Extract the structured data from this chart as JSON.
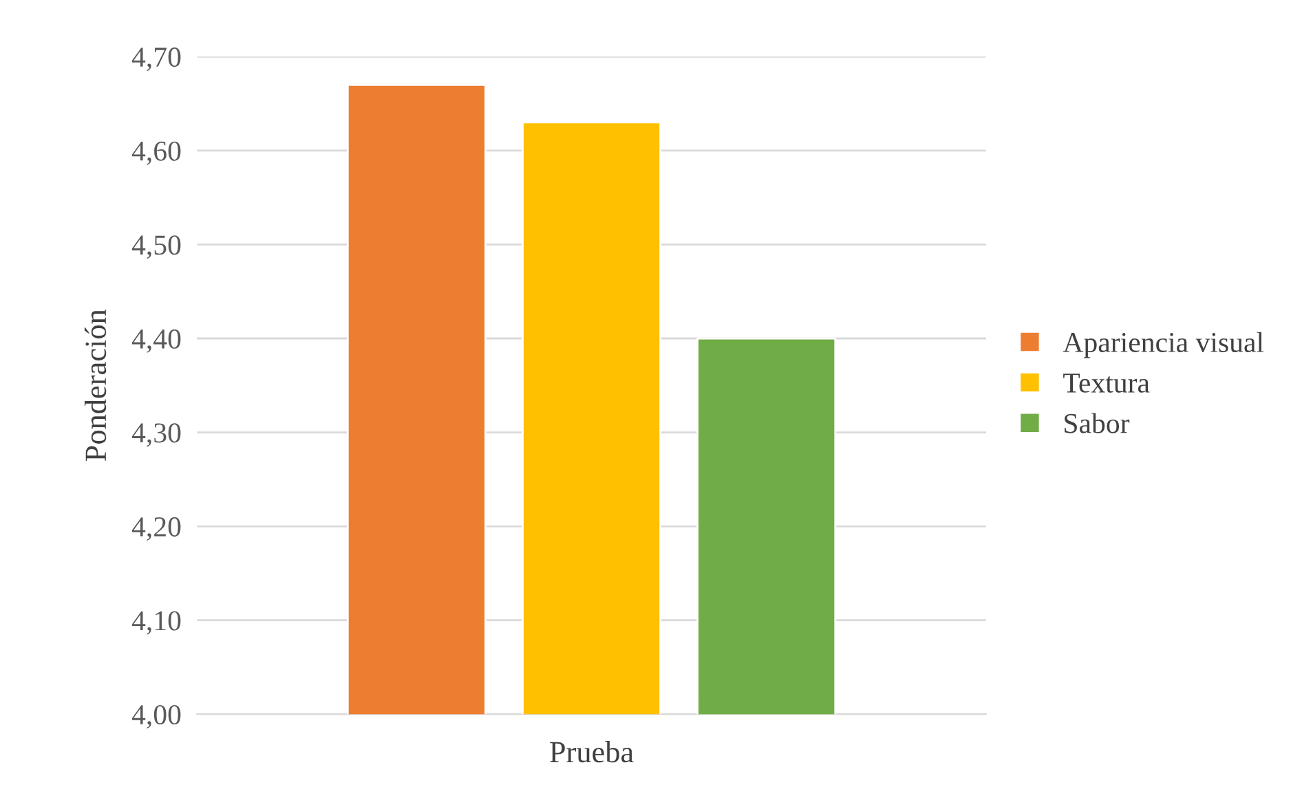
{
  "chart_data": {
    "type": "bar",
    "xlabel": "Prueba",
    "ylabel": "Ponderación",
    "categories": [
      null
    ],
    "series": [
      {
        "name": "Apariencia visual",
        "color": "#ed7d31",
        "values": [
          4.67
        ]
      },
      {
        "name": "Textura",
        "color": "#ffc000",
        "values": [
          4.63
        ]
      },
      {
        "name": "Sabor",
        "color": "#70ad47",
        "values": [
          4.4
        ]
      }
    ],
    "ylim": [
      4.0,
      4.7
    ],
    "yticks": [
      {
        "value": 4.0,
        "label": "4,00"
      },
      {
        "value": 4.1,
        "label": "4,10"
      },
      {
        "value": 4.2,
        "label": "4,20"
      },
      {
        "value": 4.3,
        "label": "4,30"
      },
      {
        "value": 4.4,
        "label": "4,40"
      },
      {
        "value": 4.5,
        "label": "4,50"
      },
      {
        "value": 4.6,
        "label": "4,60"
      },
      {
        "value": 4.7,
        "label": "4,70"
      }
    ],
    "grid": "y",
    "legend": "right"
  }
}
